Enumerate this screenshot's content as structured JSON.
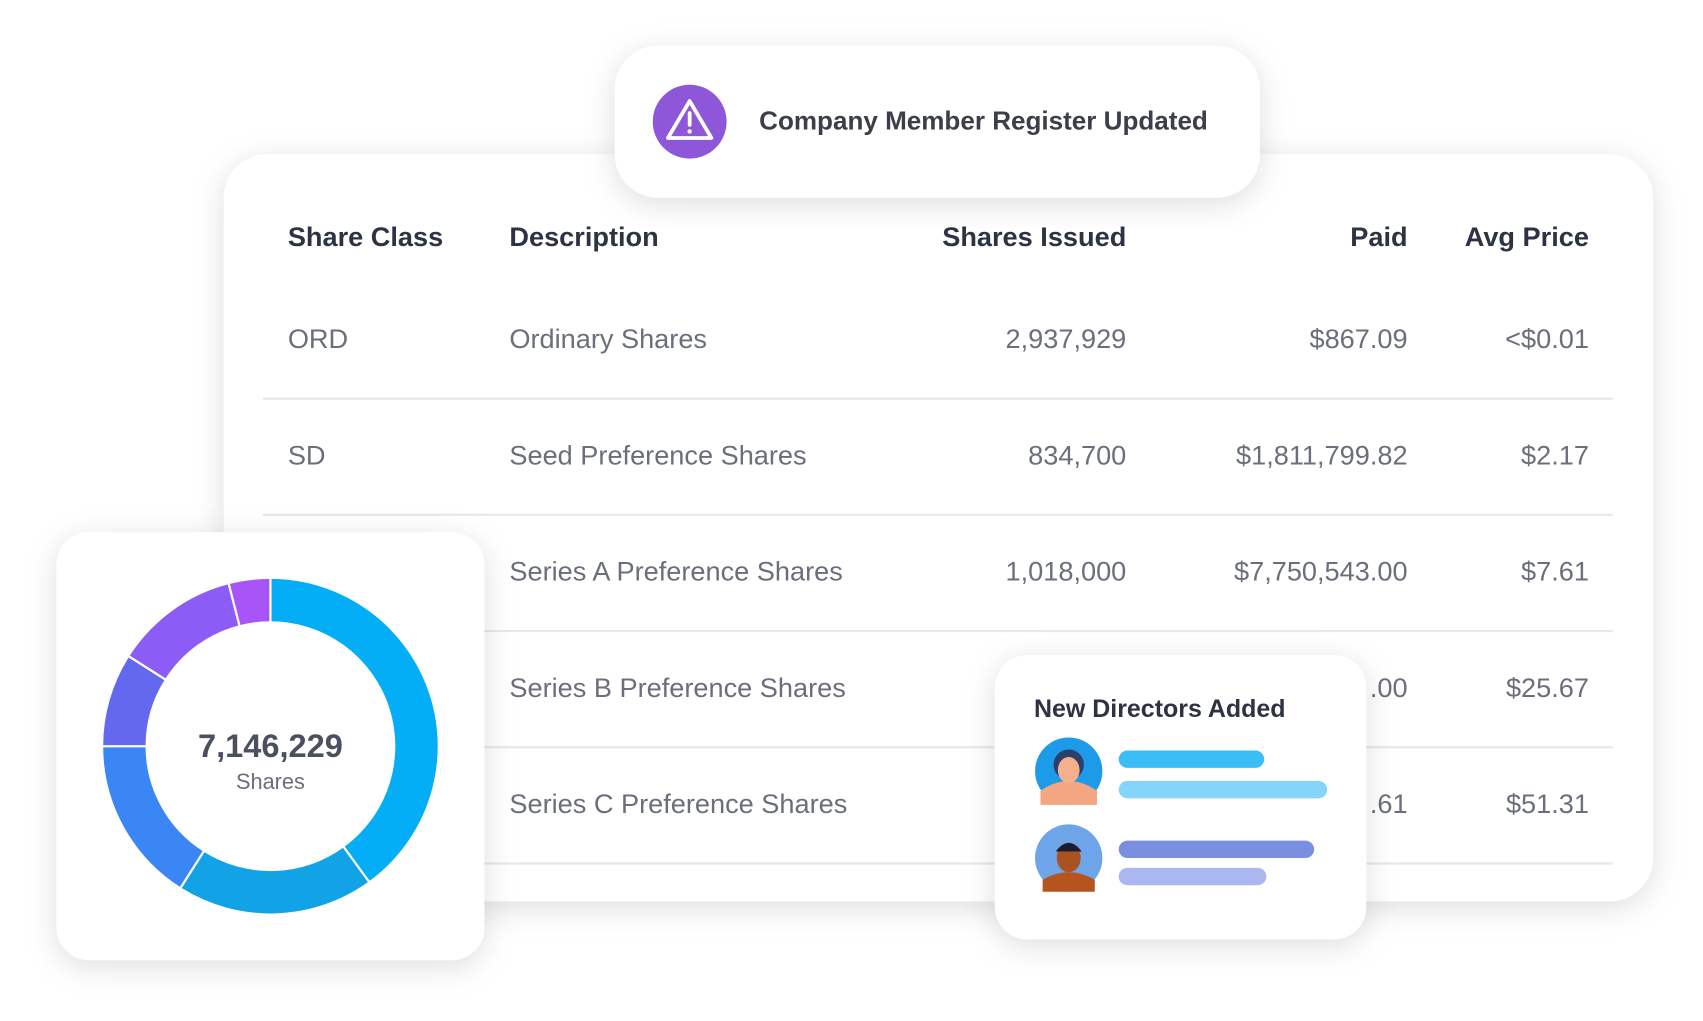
{
  "notification": {
    "title": "Company Member Register Updated"
  },
  "table": {
    "headers": [
      "Share Class",
      "Description",
      "Shares Issued",
      "Paid",
      "Avg Price"
    ],
    "rows": [
      {
        "share_class": "ORD",
        "description": "Ordinary Shares",
        "shares_issued": "2,937,929",
        "paid": "$867.09",
        "avg_price": "<$0.01"
      },
      {
        "share_class": "SD",
        "description": "Seed Preference Shares",
        "shares_issued": "834,700",
        "paid": "$1,811,799.82",
        "avg_price": "$2.17"
      },
      {
        "description": "Series A Preference Shares",
        "shares_issued": "1,018,000",
        "paid": "$7,750,543.00",
        "avg_price": "$7.61"
      },
      {
        "description": "Series B Preference Shares",
        "paid": ".00",
        "avg_price": "$25.67"
      },
      {
        "description": "Series C Preference Shares",
        "paid": ".61",
        "avg_price": "$51.31"
      }
    ]
  },
  "donut": {
    "total": "7,146,229",
    "unit": "Shares",
    "segments": [
      {
        "value": 40,
        "color": "#04aef6"
      },
      {
        "value": 19,
        "color": "#12a2e6"
      },
      {
        "value": 16,
        "color": "#3b86f5"
      },
      {
        "value": 9,
        "color": "#6468ee"
      },
      {
        "value": 12,
        "color": "#8b5cf6"
      },
      {
        "value": 4,
        "color": "#a855f7"
      }
    ]
  },
  "directors": {
    "title": "New Directors Added"
  }
}
